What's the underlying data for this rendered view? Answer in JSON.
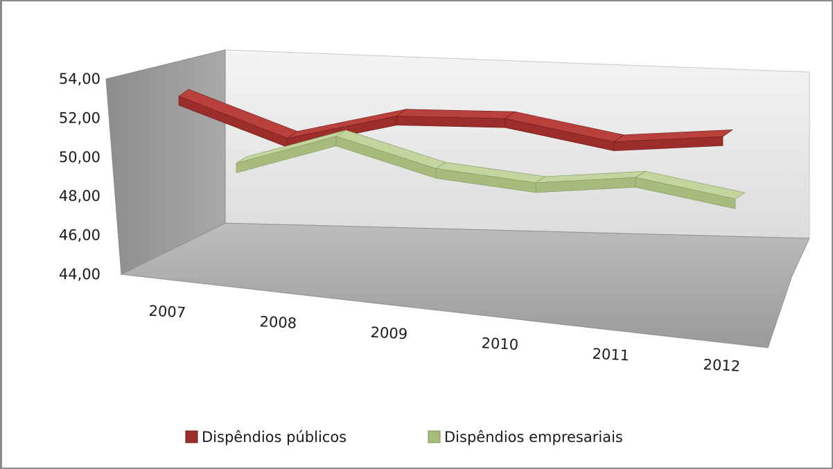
{
  "chart_data": {
    "type": "line",
    "style": "3d-ribbon",
    "categories": [
      "2007",
      "2008",
      "2009",
      "2010",
      "2011",
      "2012"
    ],
    "series": [
      {
        "name": "Dispêndios públicos",
        "values": [
          52.9,
          50.7,
          51.9,
          51.8,
          50.6,
          50.9
        ],
        "color": "#9b2d2a"
      },
      {
        "name": "Dispêndios empresariais",
        "values": [
          48.4,
          50.0,
          48.3,
          47.6,
          48.0,
          46.9
        ],
        "color": "#a7bc7c"
      }
    ],
    "ylim": [
      44,
      54
    ],
    "y_ticks": [
      "44,00",
      "46,00",
      "48,00",
      "50,00",
      "52,00",
      "54,00"
    ],
    "grid": false,
    "legend_position": "bottom"
  },
  "colors": {
    "back_wall": "#ececec",
    "side_wall": "#9d9d9d",
    "floor": "#a9a9a9"
  }
}
